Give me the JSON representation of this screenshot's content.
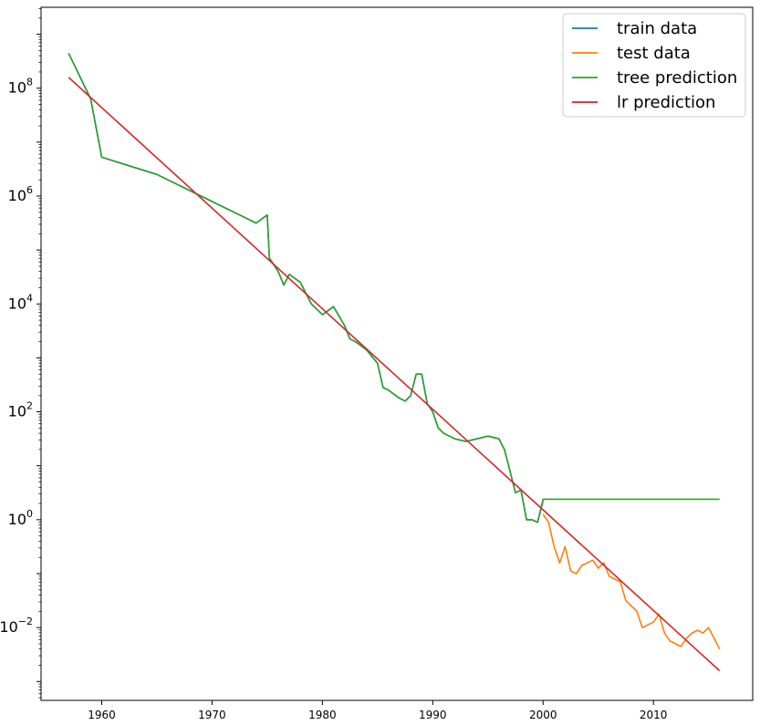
{
  "chart_data": {
    "type": "line",
    "title": "",
    "xlabel": "",
    "ylabel": "",
    "xlim": [
      1954.5,
      2019.0
    ],
    "y_scale": "log",
    "ylim_log10": [
      -3.35,
      9.5
    ],
    "grid": false,
    "legend_position": "top-right",
    "x_ticks": [
      {
        "value": 1960,
        "label": "1960"
      },
      {
        "value": 1970,
        "label": "1970"
      },
      {
        "value": 1980,
        "label": "1980"
      },
      {
        "value": 1990,
        "label": "1990"
      },
      {
        "value": 2000,
        "label": "2000"
      },
      {
        "value": 2010,
        "label": "2010"
      }
    ],
    "y_ticks": [
      {
        "exp": 8,
        "base": "10",
        "sup": "8"
      },
      {
        "exp": 6,
        "base": "10",
        "sup": "6"
      },
      {
        "exp": 4,
        "base": "10",
        "sup": "4"
      },
      {
        "exp": 2,
        "base": "10",
        "sup": "2"
      },
      {
        "exp": 0,
        "base": "10",
        "sup": "0"
      },
      {
        "exp": -2,
        "base": "10",
        "sup": "−2"
      }
    ],
    "series": [
      {
        "name": "train data",
        "color": "#1f77b4",
        "x": [
          1957.0,
          1959.0,
          1960.0,
          1965.0,
          1969.0,
          1974.0,
          1975.0,
          1975.2,
          1976.0,
          1976.5,
          1977.0,
          1978.0,
          1978.5,
          1979.0,
          1980.0,
          1981.0,
          1982.0,
          1982.5,
          1983.0,
          1984.0,
          1985.0,
          1985.5,
          1986.0,
          1987.0,
          1987.5,
          1988.0,
          1988.5,
          1989.0,
          1989.5,
          1990.0,
          1990.5,
          1991.0,
          1992.0,
          1993.0,
          1994.0,
          1995.0,
          1996.0,
          1996.5,
          1997.0,
          1997.5,
          1998.0,
          1998.5,
          1999.0,
          1999.5,
          2000.0
        ],
        "log10_y": [
          8.65,
          7.8,
          6.72,
          6.4,
          6.0,
          5.5,
          5.65,
          4.85,
          4.6,
          4.35,
          4.55,
          4.4,
          4.2,
          4.0,
          3.8,
          3.95,
          3.6,
          3.35,
          3.3,
          3.15,
          2.9,
          2.45,
          2.4,
          2.25,
          2.2,
          2.3,
          2.7,
          2.7,
          2.15,
          2.0,
          1.7,
          1.6,
          1.5,
          1.45,
          1.5,
          1.55,
          1.5,
          1.3,
          0.9,
          0.5,
          0.55,
          0.0,
          0.0,
          -0.05,
          0.35
        ]
      },
      {
        "name": "test data",
        "color": "#ff7f0e",
        "x": [
          2000.0,
          2000.5,
          2001.0,
          2001.5,
          2002.0,
          2002.5,
          2003.0,
          2003.5,
          2004.0,
          2004.5,
          2005.0,
          2005.5,
          2006.0,
          2006.5,
          2007.0,
          2007.5,
          2008.0,
          2008.5,
          2009.0,
          2009.5,
          2010.0,
          2010.5,
          2011.0,
          2011.5,
          2012.0,
          2012.5,
          2013.0,
          2013.5,
          2014.0,
          2014.5,
          2015.0,
          2015.5,
          2016.0
        ],
        "log10_y": [
          0.1,
          -0.05,
          -0.5,
          -0.8,
          -0.5,
          -0.95,
          -1.0,
          -0.85,
          -0.8,
          -0.75,
          -0.9,
          -0.8,
          -1.05,
          -1.1,
          -1.15,
          -1.5,
          -1.6,
          -1.7,
          -2.0,
          -1.95,
          -1.9,
          -1.75,
          -2.1,
          -2.25,
          -2.3,
          -2.35,
          -2.2,
          -2.1,
          -2.05,
          -2.1,
          -2.0,
          -2.2,
          -2.4
        ]
      },
      {
        "name": "tree prediction",
        "color": "#2ca02c",
        "x": [
          1957.0,
          1959.0,
          1960.0,
          1965.0,
          1969.0,
          1974.0,
          1975.0,
          1975.2,
          1976.0,
          1976.5,
          1977.0,
          1978.0,
          1978.5,
          1979.0,
          1980.0,
          1981.0,
          1982.0,
          1982.5,
          1983.0,
          1984.0,
          1985.0,
          1985.5,
          1986.0,
          1987.0,
          1987.5,
          1988.0,
          1988.5,
          1989.0,
          1989.5,
          1990.0,
          1990.5,
          1991.0,
          1992.0,
          1993.0,
          1994.0,
          1995.0,
          1996.0,
          1996.5,
          1997.0,
          1997.5,
          1998.0,
          1998.5,
          1999.0,
          1999.5,
          2000.0,
          2016.0
        ],
        "log10_y": [
          8.65,
          7.8,
          6.72,
          6.4,
          6.0,
          5.5,
          5.65,
          4.85,
          4.6,
          4.35,
          4.55,
          4.4,
          4.2,
          4.0,
          3.8,
          3.95,
          3.6,
          3.35,
          3.3,
          3.15,
          2.9,
          2.45,
          2.4,
          2.25,
          2.2,
          2.3,
          2.7,
          2.7,
          2.15,
          2.0,
          1.7,
          1.6,
          1.5,
          1.45,
          1.5,
          1.55,
          1.5,
          1.3,
          0.9,
          0.5,
          0.55,
          0.0,
          0.0,
          -0.05,
          0.38,
          0.38
        ]
      },
      {
        "name": "lr prediction",
        "color": "#d62728",
        "x": [
          1957.0,
          2016.0
        ],
        "log10_y": [
          8.2,
          -2.8
        ]
      }
    ]
  }
}
